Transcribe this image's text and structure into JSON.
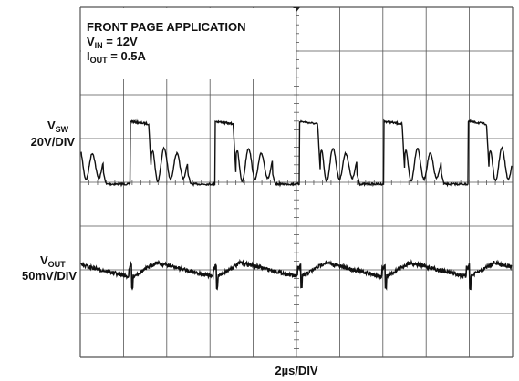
{
  "chart_data": {
    "type": "scope",
    "title": "FRONT PAGE APPLICATION",
    "conditions": [
      {
        "main": "V",
        "sub": "IN",
        "rest": " = 12V"
      },
      {
        "main": "I",
        "sub": "OUT",
        "rest": " = 0.5A"
      }
    ],
    "channels": [
      {
        "main": "V",
        "sub": "SW",
        "scale": "20V/DIV"
      },
      {
        "main": "V",
        "sub": "OUT",
        "scale": "50mV/DIV"
      }
    ],
    "xlabel": "2µs/DIV"
  }
}
